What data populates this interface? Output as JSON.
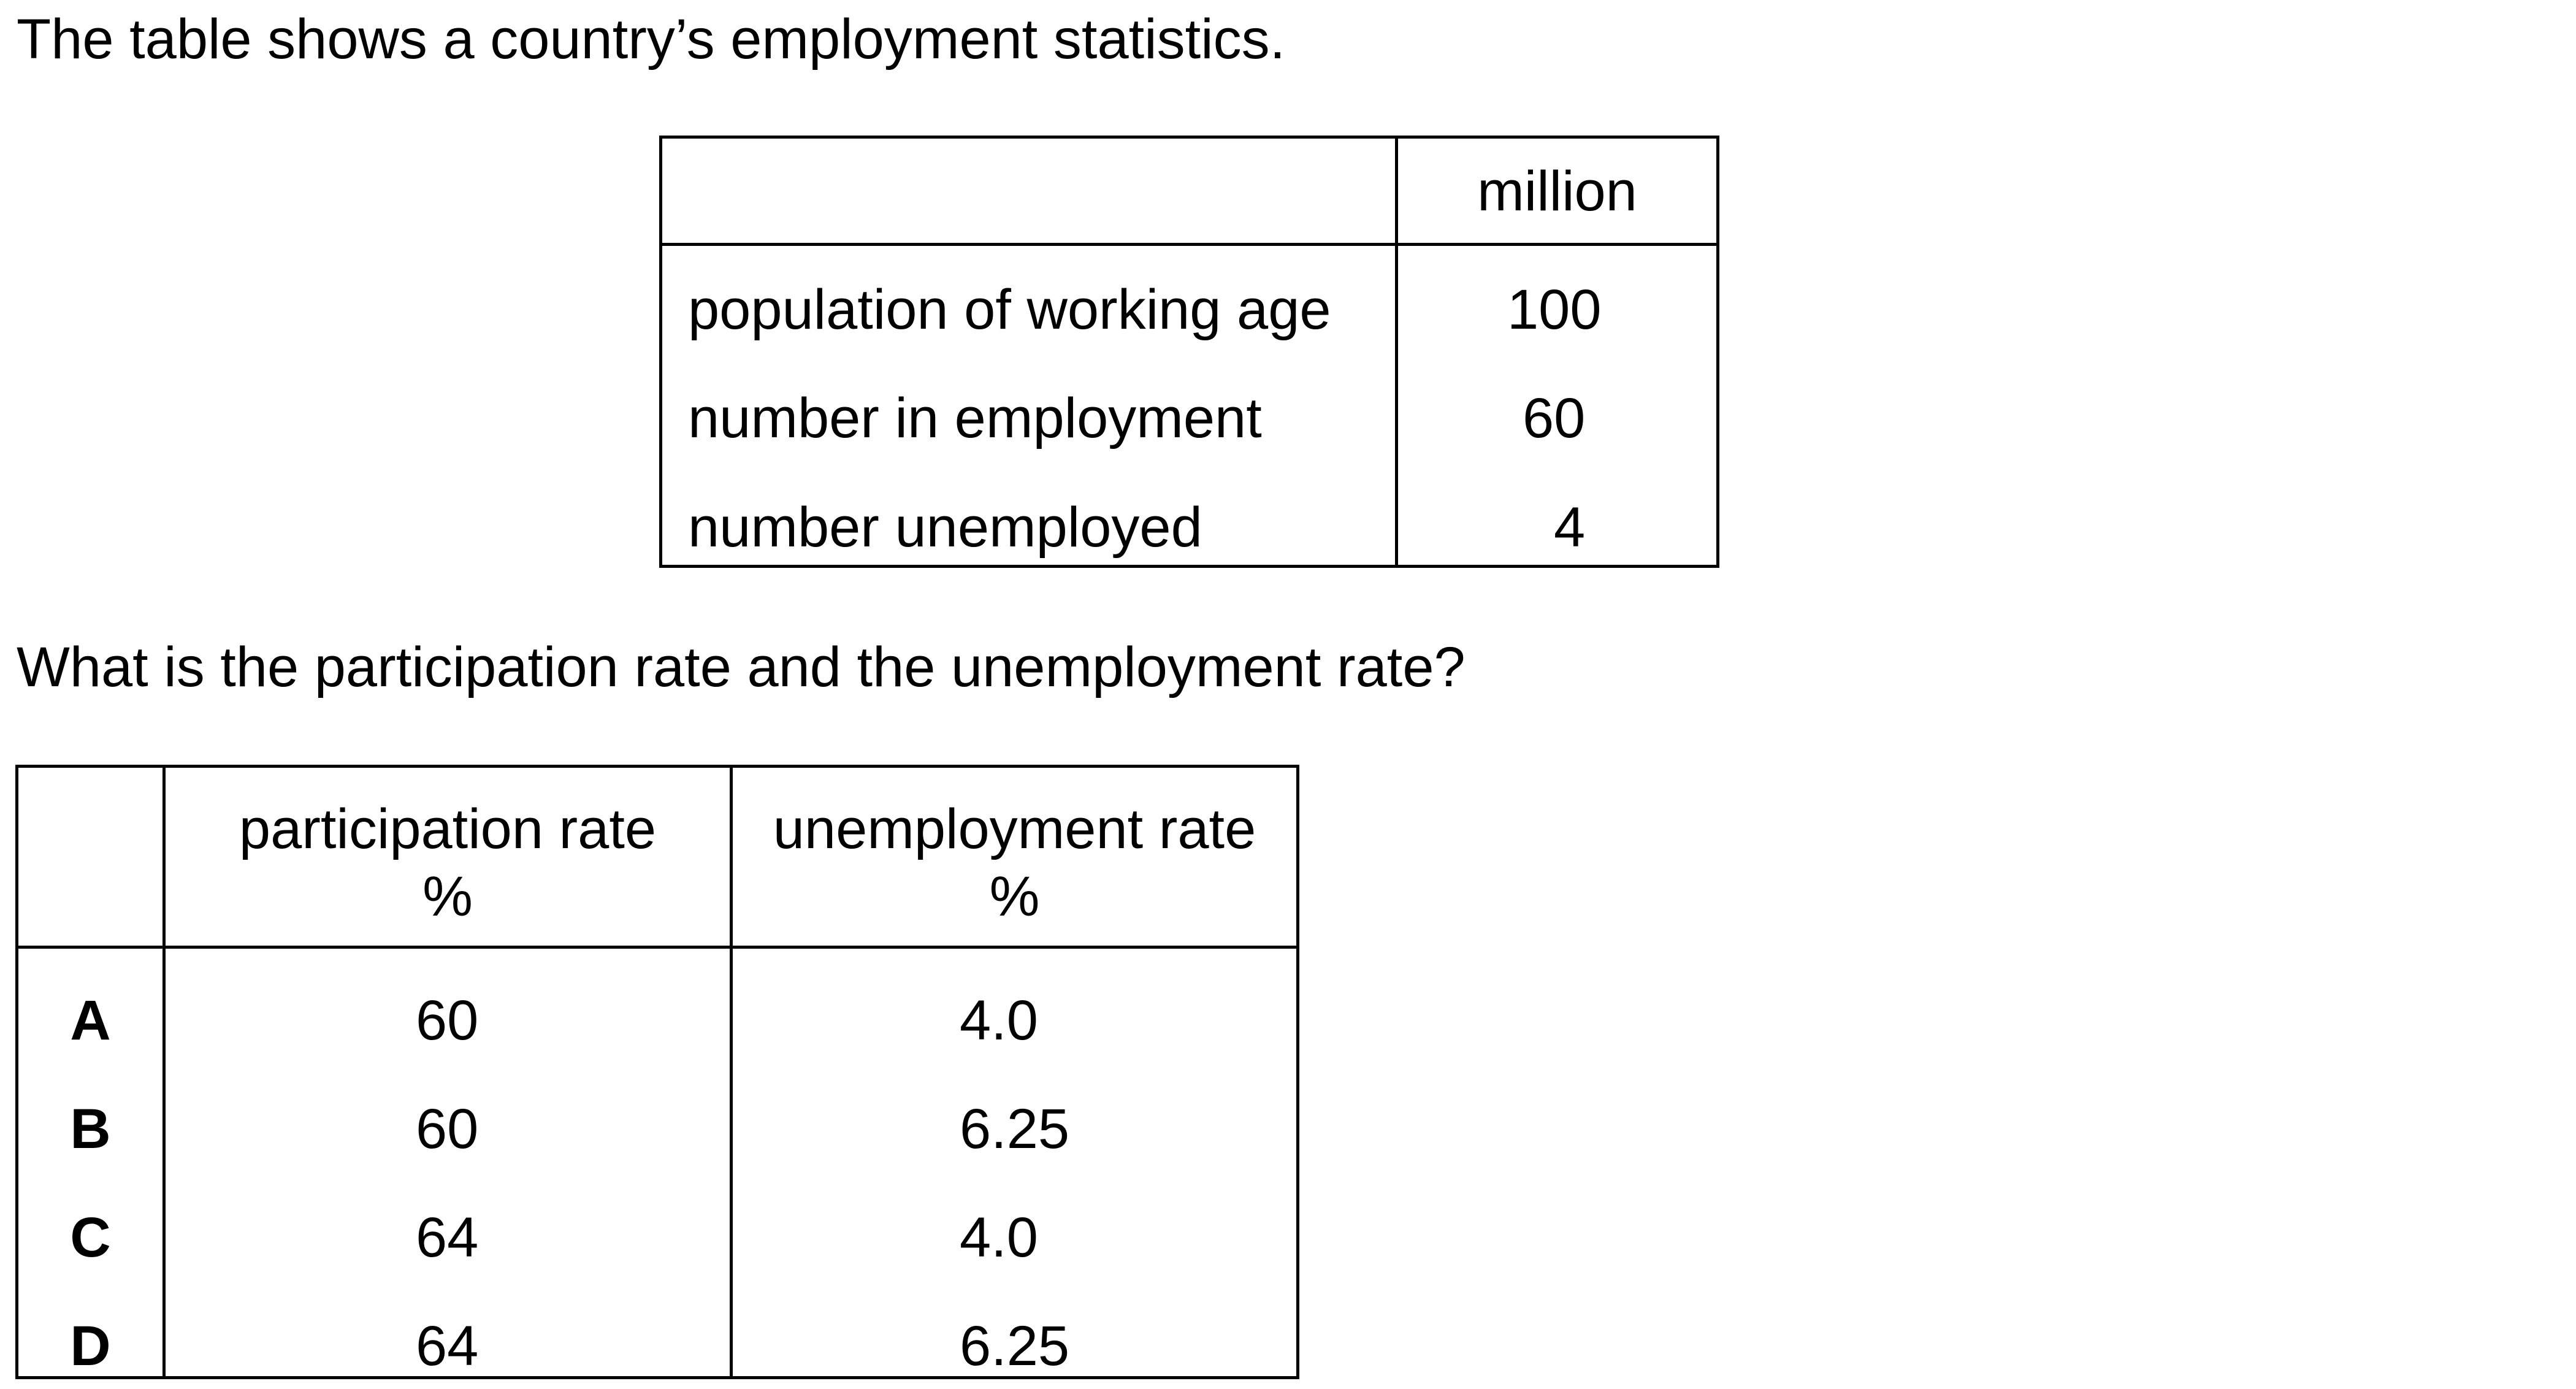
{
  "intro": "The table shows a country’s employment statistics.",
  "stats_table": {
    "unit_header": "million",
    "rows": [
      {
        "label": "population of working age",
        "value": "100"
      },
      {
        "label": "number in employment",
        "value": "60"
      },
      {
        "label": "number unemployed",
        "value": "4"
      }
    ]
  },
  "question": "What is the participation rate and the unemployment rate?",
  "options_table": {
    "headers": [
      {
        "line1": "participation rate",
        "line2": "%"
      },
      {
        "line1": "unemployment rate",
        "line2": "%"
      }
    ],
    "rows": [
      {
        "letter": "A",
        "participation": "60",
        "unemployment": "4.0"
      },
      {
        "letter": "B",
        "participation": "60",
        "unemployment": "6.25"
      },
      {
        "letter": "C",
        "participation": "64",
        "unemployment": "4.0"
      },
      {
        "letter": "D",
        "participation": "64",
        "unemployment": "6.25"
      }
    ]
  }
}
